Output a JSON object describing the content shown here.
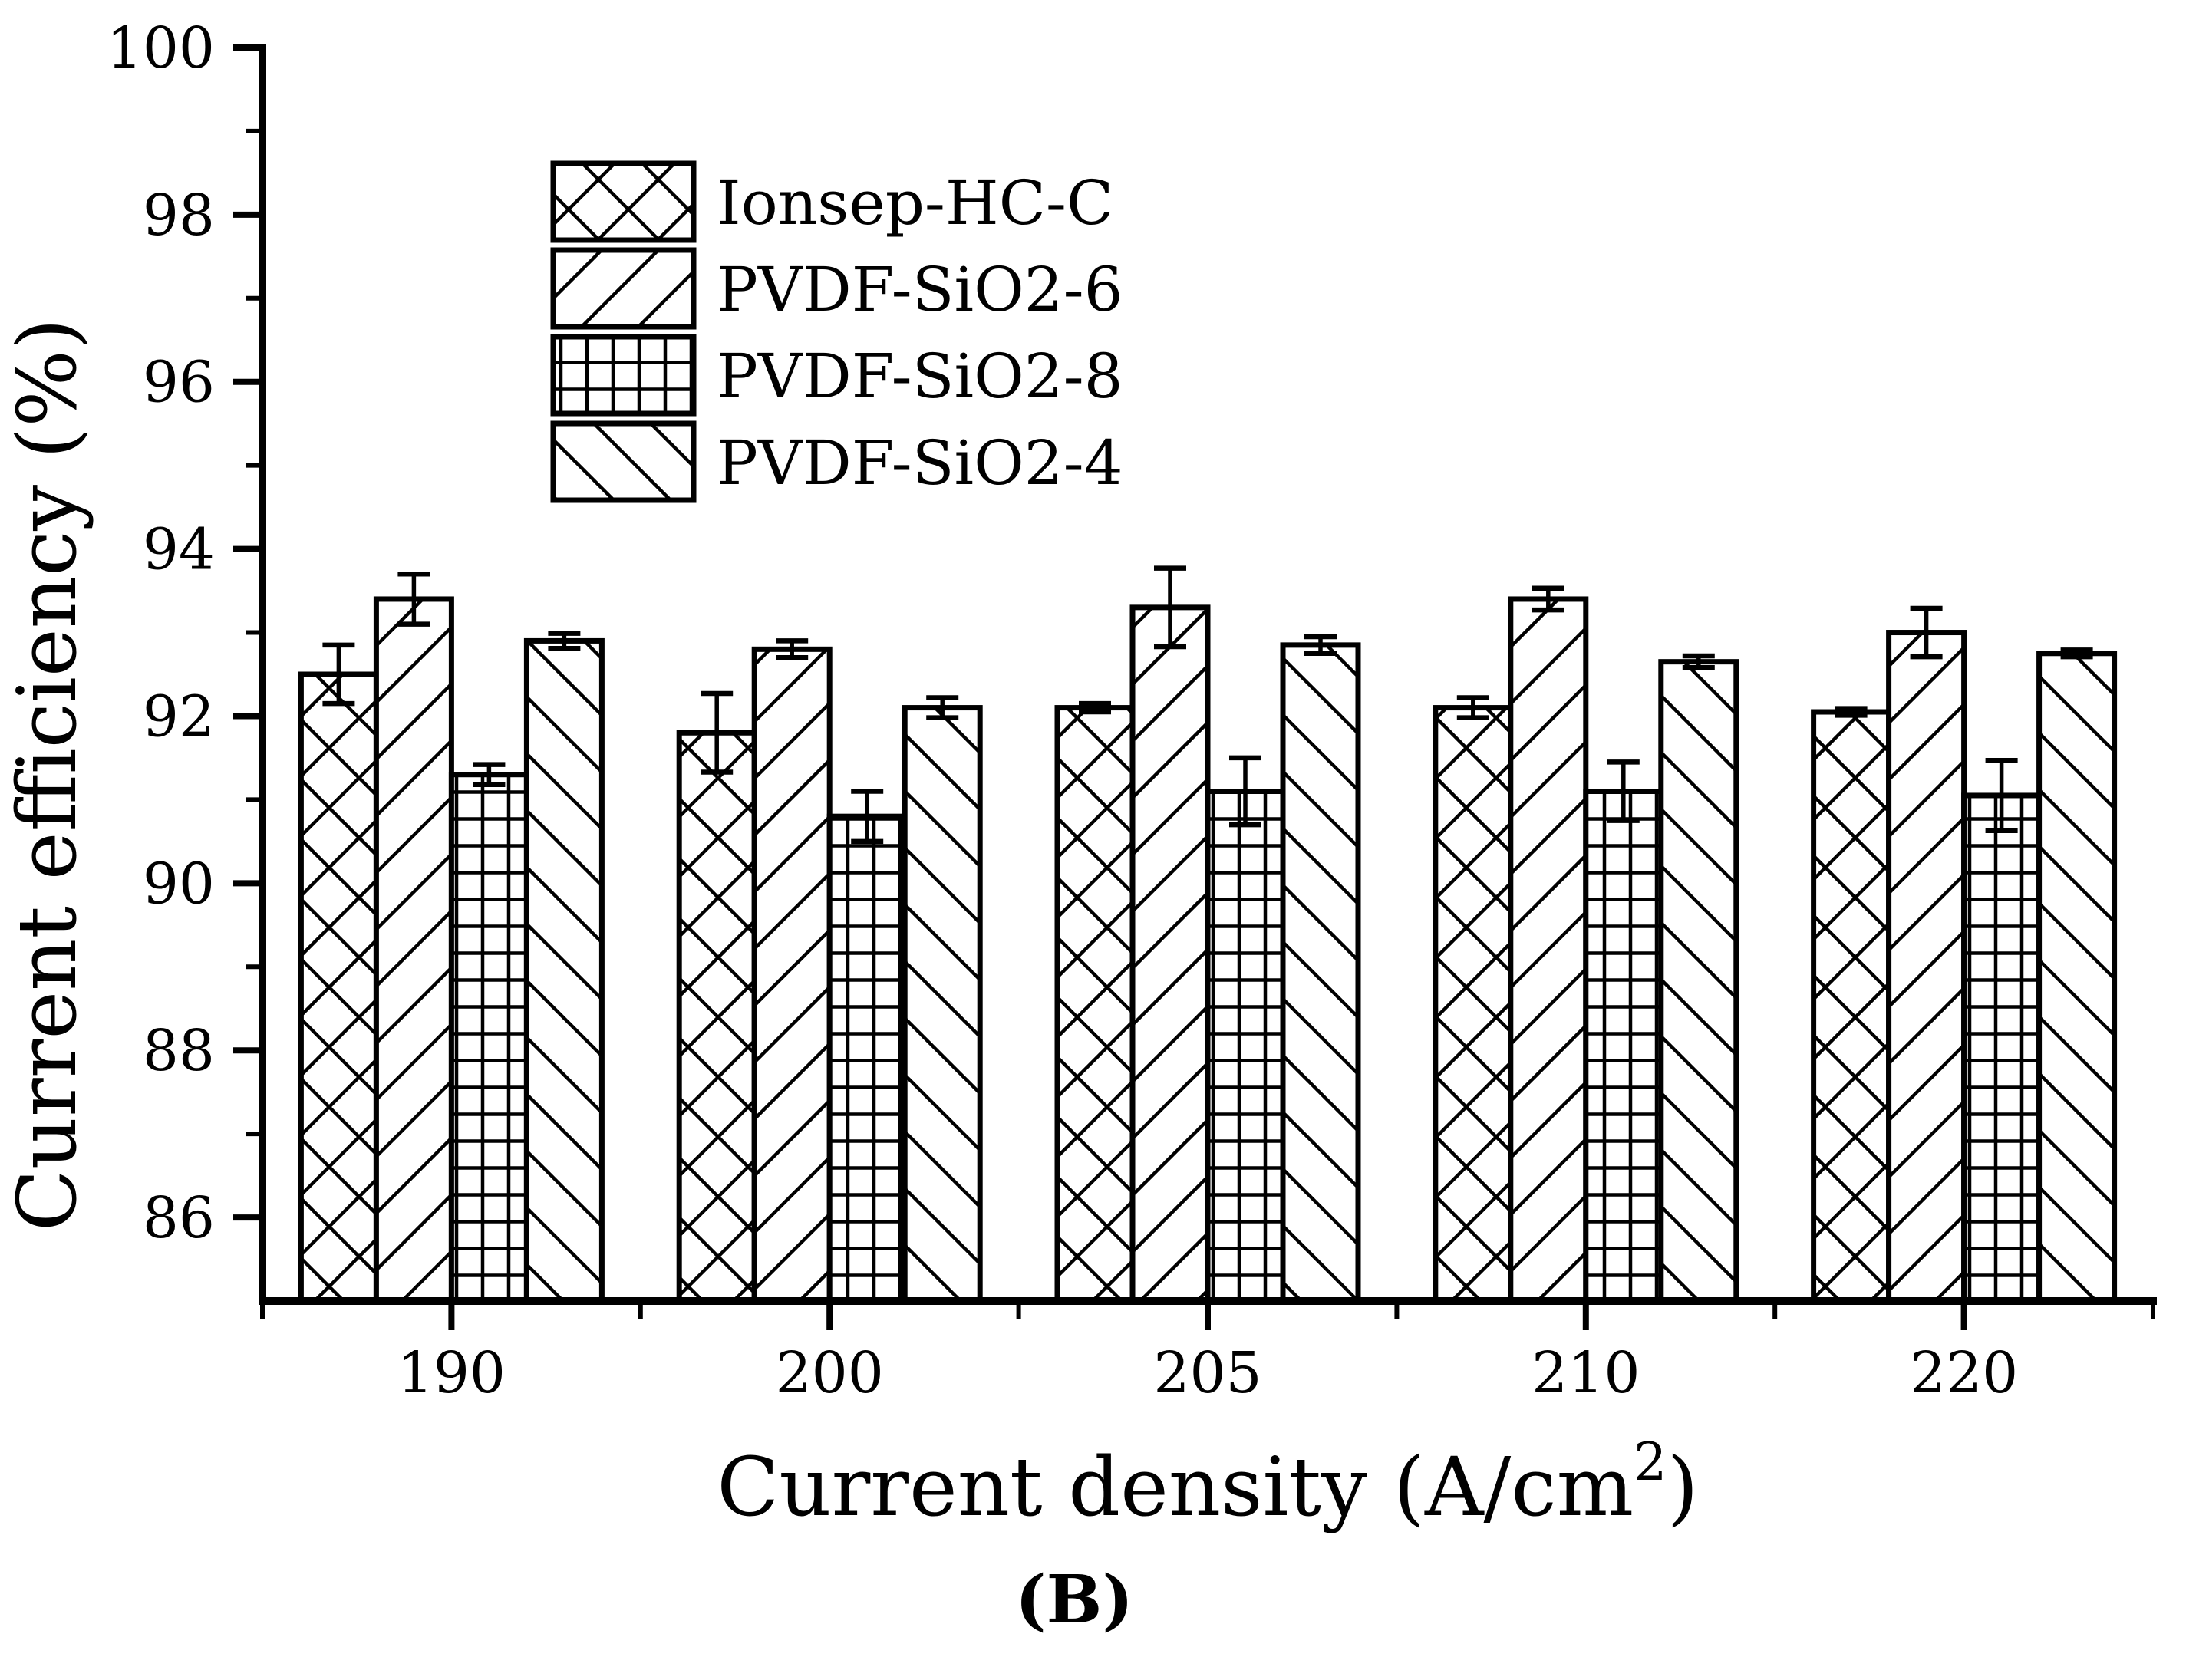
{
  "chart_data": {
    "type": "bar",
    "title": "",
    "xlabel_prefix": "Current density (A/cm",
    "xlabel_superscript": "2",
    "xlabel_suffix": ")",
    "ylabel": "Current efficiency (%)",
    "caption": "(B)",
    "categories": [
      "190",
      "200",
      "205",
      "210",
      "220"
    ],
    "series": [
      {
        "name": "Ionsep-HC-C",
        "hatch": "crosshatch",
        "values": [
          92.5,
          91.8,
          92.1,
          92.1,
          92.05
        ],
        "errors": [
          0.35,
          0.47,
          0.05,
          0.12,
          0.04
        ]
      },
      {
        "name": "PVDF-SiO2-6",
        "hatch": "diagonal-up",
        "values": [
          93.4,
          92.8,
          93.3,
          93.4,
          93.0
        ],
        "errors": [
          0.3,
          0.1,
          0.47,
          0.13,
          0.29
        ]
      },
      {
        "name": "PVDF-SiO2-8",
        "hatch": "grid",
        "values": [
          91.3,
          90.8,
          91.1,
          91.1,
          91.05
        ],
        "errors": [
          0.12,
          0.3,
          0.4,
          0.35,
          0.42
        ]
      },
      {
        "name": "PVDF-SiO2-4",
        "hatch": "diagonal-down",
        "values": [
          92.9,
          92.1,
          92.85,
          92.65,
          92.75
        ],
        "errors": [
          0.09,
          0.12,
          0.1,
          0.07,
          0.04
        ]
      }
    ],
    "ylim": [
      85,
      100
    ],
    "yticks_major": [
      86,
      88,
      90,
      92,
      94,
      96,
      98,
      100
    ],
    "yticks_minor": [
      87,
      89,
      91,
      93,
      95,
      97,
      99
    ],
    "legend_position": "upper-left-inside",
    "grid": false,
    "error_bars": true,
    "colors": {
      "ink": "#000000",
      "background": "#ffffff"
    }
  }
}
